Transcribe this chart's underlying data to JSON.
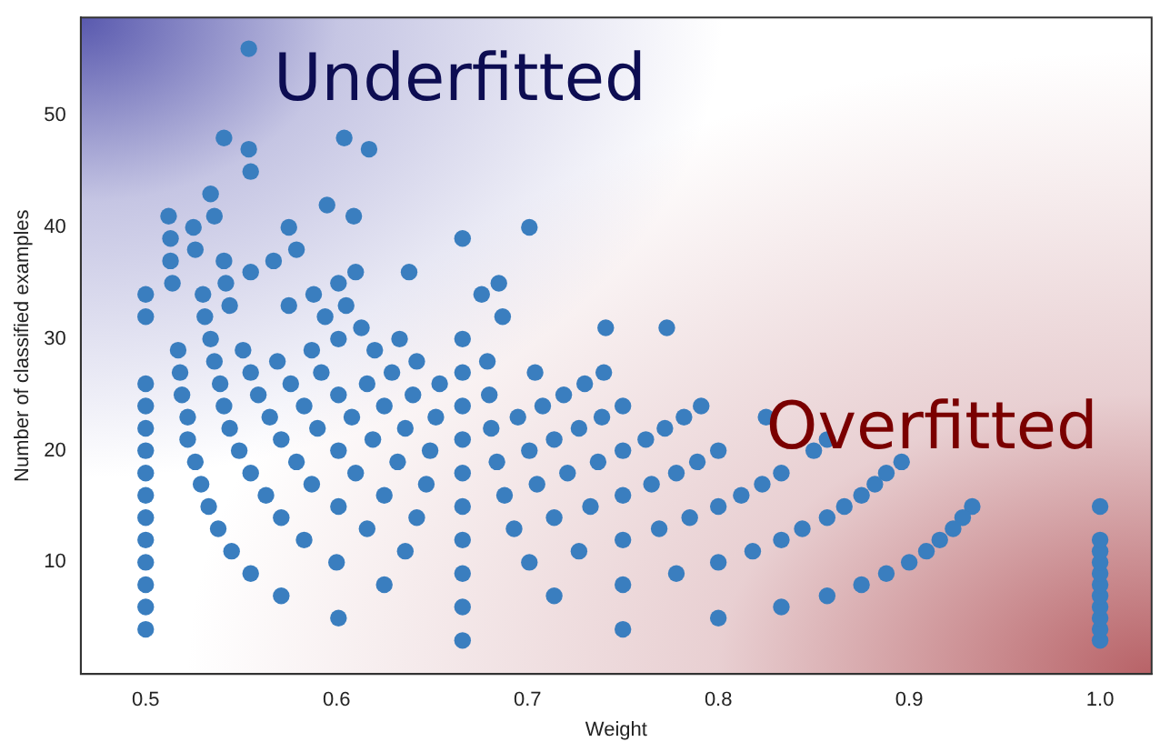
{
  "chart_data": {
    "type": "scatter",
    "xlabel": "Weight",
    "ylabel": "Number of classified examples",
    "annotations": [
      "Underfitted",
      "Overfitted"
    ],
    "xlim": [
      0.466,
      1.027
    ],
    "ylim": [
      0,
      58.8
    ],
    "xticks": [
      0.5,
      0.6,
      0.7,
      0.8,
      0.9,
      {
        "value": 1,
        "label": "1.0"
      }
    ],
    "yticks": [
      10,
      20,
      30,
      40,
      50
    ],
    "grid": false,
    "legend": false,
    "marker": "circle",
    "series": [
      {
        "color": "#3a7ebf",
        "x": [
          0.5,
          0.5,
          0.5,
          0.5,
          0.5,
          0.5,
          0.5,
          0.5,
          0.5,
          0.5,
          0.5,
          0.5,
          0.5,
          0.5,
          0.554,
          0.541,
          0.554,
          0.555,
          0.534,
          0.536,
          0.512,
          0.525,
          0.513,
          0.526,
          0.513,
          0.541,
          0.514,
          0.542,
          0.555,
          0.567,
          0.575,
          0.579,
          0.595,
          0.609,
          0.604,
          0.617,
          0.61,
          0.601,
          0.588,
          0.575,
          0.605,
          0.594,
          0.638,
          0.53,
          0.531,
          0.544,
          0.613,
          0.601,
          0.633,
          0.587,
          0.62,
          0.517,
          0.518,
          0.519,
          0.522,
          0.522,
          0.526,
          0.529,
          0.533,
          0.538,
          0.545,
          0.555,
          0.534,
          0.536,
          0.539,
          0.541,
          0.544,
          0.549,
          0.555,
          0.563,
          0.571,
          0.583,
          0.6,
          0.551,
          0.555,
          0.559,
          0.565,
          0.571,
          0.579,
          0.587,
          0.601,
          0.616,
          0.636,
          0.569,
          0.576,
          0.583,
          0.59,
          0.601,
          0.61,
          0.625,
          0.642,
          0.592,
          0.601,
          0.608,
          0.619,
          0.632,
          0.647,
          0.616,
          0.625,
          0.636,
          0.649,
          0.629,
          0.64,
          0.652,
          0.642,
          0.654,
          0.601,
          0.571,
          0.625,
          0.666,
          0.701,
          0.676,
          0.685,
          0.687,
          0.666,
          0.679,
          0.666,
          0.704,
          0.741,
          0.773,
          0.666,
          0.68,
          0.695,
          0.708,
          0.719,
          0.73,
          0.74,
          0.666,
          0.681,
          0.701,
          0.714,
          0.727,
          0.739,
          0.75,
          0.666,
          0.684,
          0.705,
          0.721,
          0.737,
          0.75,
          0.762,
          0.772,
          0.782,
          0.791,
          0.666,
          0.688,
          0.714,
          0.733,
          0.75,
          0.765,
          0.778,
          0.789,
          0.8,
          0.666,
          0.693,
          0.701,
          0.727,
          0.75,
          0.769,
          0.785,
          0.8,
          0.812,
          0.823,
          0.833,
          0.666,
          0.714,
          0.75,
          0.778,
          0.8,
          0.818,
          0.833,
          0.844,
          0.666,
          0.75,
          0.8,
          0.833,
          0.666,
          0.825,
          0.85,
          0.857,
          0.888,
          0.896,
          0.882,
          0.875,
          0.866,
          0.857,
          0.933,
          0.928,
          0.923,
          0.916,
          0.909,
          0.9,
          0.888,
          0.875,
          0.857,
          1,
          1,
          1,
          1,
          1,
          1,
          1,
          1,
          1,
          1,
          1
        ],
        "values": [
          4,
          6,
          8,
          10,
          12,
          14,
          16,
          18,
          20,
          22,
          24,
          26,
          32,
          34,
          56,
          48,
          47,
          45,
          43,
          41,
          41,
          40,
          39,
          38,
          37,
          37,
          35,
          35,
          36,
          37,
          40,
          38,
          42,
          41,
          48,
          47,
          36,
          35,
          34,
          33,
          33,
          32,
          36,
          34,
          32,
          33,
          31,
          30,
          30,
          29,
          29,
          29,
          27,
          25,
          23,
          21,
          19,
          17,
          15,
          13,
          11,
          9,
          30,
          28,
          26,
          24,
          22,
          20,
          18,
          16,
          14,
          12,
          10,
          29,
          27,
          25,
          23,
          21,
          19,
          17,
          15,
          13,
          11,
          28,
          26,
          24,
          22,
          20,
          18,
          16,
          14,
          27,
          25,
          23,
          21,
          19,
          17,
          26,
          24,
          22,
          20,
          27,
          25,
          23,
          28,
          26,
          5,
          7,
          8,
          39,
          40,
          34,
          35,
          32,
          30,
          28,
          27,
          27,
          31,
          31,
          24,
          25,
          23,
          24,
          25,
          26,
          27,
          21,
          22,
          20,
          21,
          22,
          23,
          24,
          18,
          19,
          17,
          18,
          19,
          20,
          21,
          22,
          23,
          24,
          15,
          16,
          14,
          15,
          16,
          17,
          18,
          19,
          20,
          12,
          13,
          10,
          11,
          12,
          13,
          14,
          15,
          16,
          17,
          18,
          9,
          7,
          8,
          9,
          10,
          11,
          12,
          13,
          6,
          4,
          5,
          6,
          3,
          23,
          20,
          21,
          18,
          19,
          17,
          16,
          15,
          14,
          15,
          14,
          13,
          12,
          11,
          10,
          9,
          8,
          7,
          3,
          4,
          5,
          6,
          7,
          8,
          9,
          10,
          11,
          12,
          15
        ]
      }
    ]
  }
}
